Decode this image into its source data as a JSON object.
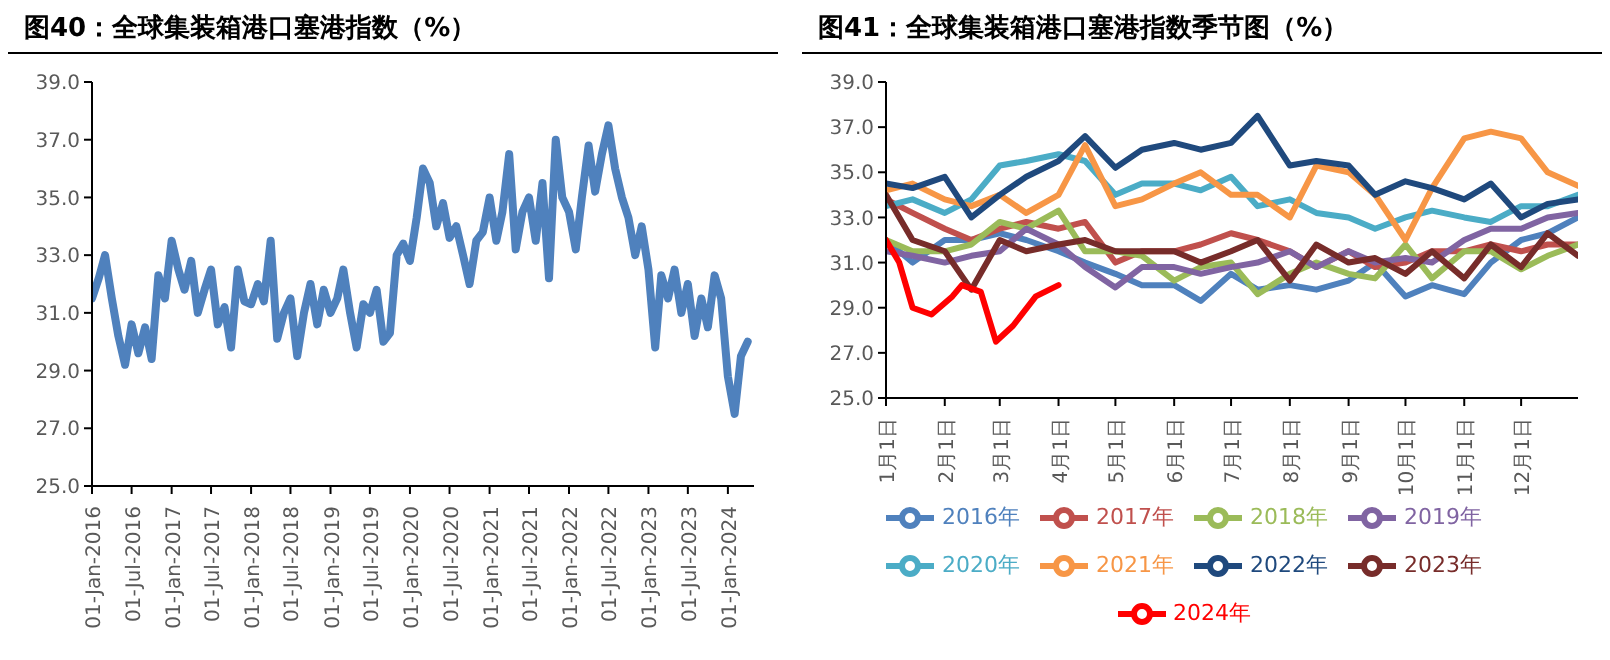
{
  "chart_data": [
    {
      "type": "line",
      "title": "图40：全球集装箱港口塞港指数（%）",
      "marker": "none",
      "line_style": "solid",
      "grid": false,
      "legend": false,
      "x": [
        "2016-01",
        "2016-02",
        "2016-03",
        "2016-04",
        "2016-05",
        "2016-06",
        "2016-07",
        "2016-08",
        "2016-09",
        "2016-10",
        "2016-11",
        "2016-12",
        "2017-01",
        "2017-02",
        "2017-03",
        "2017-04",
        "2017-05",
        "2017-06",
        "2017-07",
        "2017-08",
        "2017-09",
        "2017-10",
        "2017-11",
        "2017-12",
        "2018-01",
        "2018-02",
        "2018-03",
        "2018-04",
        "2018-05",
        "2018-06",
        "2018-07",
        "2018-08",
        "2018-09",
        "2018-10",
        "2018-11",
        "2018-12",
        "2019-01",
        "2019-02",
        "2019-03",
        "2019-04",
        "2019-05",
        "2019-06",
        "2019-07",
        "2019-08",
        "2019-09",
        "2019-10",
        "2019-11",
        "2019-12",
        "2020-01",
        "2020-02",
        "2020-03",
        "2020-04",
        "2020-05",
        "2020-06",
        "2020-07",
        "2020-08",
        "2020-09",
        "2020-10",
        "2020-11",
        "2020-12",
        "2021-01",
        "2021-02",
        "2021-03",
        "2021-04",
        "2021-05",
        "2021-06",
        "2021-07",
        "2021-08",
        "2021-09",
        "2021-10",
        "2021-11",
        "2021-12",
        "2022-01",
        "2022-02",
        "2022-03",
        "2022-04",
        "2022-05",
        "2022-06",
        "2022-07",
        "2022-08",
        "2022-09",
        "2022-10",
        "2022-11",
        "2022-12",
        "2023-01",
        "2023-02",
        "2023-03",
        "2023-04",
        "2023-05",
        "2023-06",
        "2023-07",
        "2023-08",
        "2023-09",
        "2023-10",
        "2023-11",
        "2023-12",
        "2024-01",
        "2024-02",
        "2024-03",
        "2024-04"
      ],
      "series": [
        {
          "color": "#4f81bd",
          "values": [
            31.5,
            32.2,
            33.0,
            31.5,
            30.2,
            29.2,
            30.6,
            29.6,
            30.5,
            29.4,
            32.3,
            31.5,
            33.5,
            32.5,
            31.8,
            32.8,
            31.0,
            31.8,
            32.5,
            30.6,
            31.2,
            29.8,
            32.5,
            31.4,
            31.3,
            32.0,
            31.4,
            33.5,
            30.1,
            31.0,
            31.5,
            29.5,
            31.0,
            32.0,
            30.6,
            31.8,
            31.0,
            31.5,
            32.5,
            31.0,
            29.8,
            31.3,
            31.0,
            31.8,
            30.0,
            30.3,
            33.0,
            33.4,
            32.8,
            34.3,
            36.0,
            35.5,
            34.0,
            34.8,
            33.6,
            34.0,
            33.0,
            32.0,
            33.5,
            33.8,
            35.0,
            33.5,
            34.5,
            36.5,
            33.2,
            34.5,
            35.0,
            33.5,
            35.5,
            32.2,
            37.0,
            35.0,
            34.5,
            33.2,
            35.0,
            36.8,
            35.2,
            36.5,
            37.5,
            36.0,
            35.0,
            34.3,
            33.0,
            34.0,
            32.5,
            29.8,
            32.3,
            31.5,
            32.5,
            31.0,
            32.0,
            30.2,
            31.5,
            30.5,
            32.3,
            31.5,
            28.8,
            27.5,
            29.5,
            30.0
          ]
        }
      ],
      "xlim": [
        "2016-01-01",
        "2024-04-30"
      ],
      "xticks": [
        {
          "value": "2016-01-01",
          "label": "01-Jan-2016"
        },
        {
          "value": "2016-07-01",
          "label": "01-Jul-2016"
        },
        {
          "value": "2017-01-01",
          "label": "01-Jan-2017"
        },
        {
          "value": "2017-07-01",
          "label": "01-Jul-2017"
        },
        {
          "value": "2018-01-01",
          "label": "01-Jan-2018"
        },
        {
          "value": "2018-07-01",
          "label": "01-Jul-2018"
        },
        {
          "value": "2019-01-01",
          "label": "01-Jan-2019"
        },
        {
          "value": "2019-07-01",
          "label": "01-Jul-2019"
        },
        {
          "value": "2020-01-01",
          "label": "01-Jan-2020"
        },
        {
          "value": "2020-07-01",
          "label": "01-Jul-2020"
        },
        {
          "value": "2021-01-01",
          "label": "01-Jan-2021"
        },
        {
          "value": "2021-07-01",
          "label": "01-Jul-2021"
        },
        {
          "value": "2022-01-01",
          "label": "01-Jan-2022"
        },
        {
          "value": "2022-07-01",
          "label": "01-Jul-2022"
        },
        {
          "value": "2023-01-01",
          "label": "01-Jan-2023"
        },
        {
          "value": "2023-07-01",
          "label": "01-Jul-2023"
        },
        {
          "value": "2024-01-01",
          "label": "01-Jan-2024"
        }
      ],
      "ylim": [
        25,
        39
      ],
      "yticks": [
        {
          "value": 25,
          "label": "25.0"
        },
        {
          "value": 27,
          "label": "27.0"
        },
        {
          "value": 29,
          "label": "29.0"
        },
        {
          "value": 31,
          "label": "31.0"
        },
        {
          "value": 33,
          "label": "33.0"
        },
        {
          "value": 35,
          "label": "35.0"
        },
        {
          "value": 37,
          "label": "37.0"
        },
        {
          "value": 39,
          "label": "39.0"
        }
      ]
    },
    {
      "type": "line",
      "title": "图41：全球集装箱港口塞港指数季节图（%）",
      "marker": "none",
      "line_style": "solid",
      "grid": false,
      "legend": "bottom",
      "x": [
        "--01-01",
        "--01-15",
        "--02-01",
        "--02-15",
        "--03-01",
        "--03-15",
        "--04-01",
        "--04-15",
        "--05-01",
        "--05-15",
        "--06-01",
        "--06-15",
        "--07-01",
        "--07-15",
        "--08-01",
        "--08-15",
        "--09-01",
        "--09-15",
        "--10-01",
        "--10-15",
        "--11-01",
        "--11-15",
        "--12-01",
        "--12-15",
        "--12-31"
      ],
      "series": [
        {
          "name": "2016年",
          "color": "#4f81bd",
          "values": [
            32.0,
            31.0,
            32.0,
            32.0,
            32.3,
            32.0,
            31.5,
            31.0,
            30.5,
            30.0,
            30.0,
            29.3,
            30.5,
            29.8,
            30.0,
            29.8,
            30.2,
            31.0,
            29.5,
            30.0,
            29.6,
            31.0,
            32.0,
            32.3,
            33.0
          ]
        },
        {
          "name": "2017年",
          "color": "#c0504d",
          "values": [
            33.8,
            33.2,
            32.5,
            32.0,
            32.5,
            32.8,
            32.5,
            32.8,
            31.0,
            31.5,
            31.5,
            31.8,
            32.3,
            32.0,
            31.5,
            30.8,
            31.5,
            30.8,
            31.0,
            31.5,
            31.5,
            31.8,
            31.5,
            31.8,
            31.8
          ]
        },
        {
          "name": "2018年",
          "color": "#9bbb59",
          "values": [
            32.0,
            31.5,
            31.5,
            31.8,
            32.8,
            32.5,
            33.3,
            31.5,
            31.5,
            31.3,
            30.2,
            30.8,
            31.0,
            29.6,
            30.5,
            31.0,
            30.5,
            30.3,
            31.8,
            30.3,
            31.5,
            31.5,
            30.7,
            31.3,
            31.8
          ]
        },
        {
          "name": "2019年",
          "color": "#8064a2",
          "values": [
            31.5,
            31.3,
            31.0,
            31.3,
            31.5,
            32.5,
            31.8,
            30.8,
            29.9,
            30.8,
            30.8,
            30.5,
            30.8,
            31.0,
            31.5,
            30.8,
            31.5,
            31.0,
            31.2,
            31.0,
            32.0,
            32.5,
            32.5,
            33.0,
            33.2
          ]
        },
        {
          "name": "2020年",
          "color": "#4bacc6",
          "values": [
            33.5,
            33.8,
            33.2,
            33.8,
            35.3,
            35.5,
            35.8,
            35.5,
            34.0,
            34.5,
            34.5,
            34.2,
            34.8,
            33.5,
            33.8,
            33.2,
            33.0,
            32.5,
            33.0,
            33.3,
            33.0,
            32.8,
            33.5,
            33.5,
            34.0
          ]
        },
        {
          "name": "2021年",
          "color": "#f79646",
          "values": [
            34.2,
            34.5,
            33.8,
            33.5,
            34.0,
            33.2,
            34.0,
            36.2,
            33.5,
            33.8,
            34.5,
            35.0,
            34.0,
            34.0,
            33.0,
            35.3,
            35.0,
            34.0,
            32.0,
            34.3,
            36.5,
            36.8,
            36.5,
            35.0,
            34.4
          ]
        },
        {
          "name": "2022年",
          "color": "#1f497d",
          "values": [
            34.5,
            34.3,
            34.8,
            33.0,
            34.0,
            34.8,
            35.5,
            36.6,
            35.2,
            36.0,
            36.3,
            36.0,
            36.3,
            37.5,
            35.3,
            35.5,
            35.3,
            34.0,
            34.6,
            34.3,
            33.8,
            34.5,
            33.0,
            33.6,
            33.8
          ]
        },
        {
          "name": "2023年",
          "color": "#772c2a",
          "values": [
            34.0,
            32.0,
            31.5,
            29.8,
            32.0,
            31.5,
            31.8,
            32.0,
            31.5,
            31.5,
            31.5,
            31.0,
            31.5,
            32.0,
            30.2,
            31.8,
            31.0,
            31.2,
            30.5,
            31.5,
            30.3,
            31.8,
            30.8,
            32.3,
            31.3
          ]
        },
        {
          "name": "2024年",
          "color": "#ff0000",
          "x": [
            "--01-01",
            "--01-08",
            "--01-15",
            "--01-25",
            "--02-05",
            "--02-10",
            "--02-20",
            "--02-28",
            "--03-08",
            "--03-20",
            "--04-01"
          ],
          "values": [
            32.0,
            31.0,
            29.0,
            28.7,
            29.5,
            30.0,
            29.7,
            27.5,
            28.2,
            29.5,
            30.0
          ]
        }
      ],
      "xlim": [
        "--01-01",
        "--12-31"
      ],
      "xticks": [
        {
          "value": "--01-01",
          "label": "1月1日"
        },
        {
          "value": "--02-01",
          "label": "2月1日"
        },
        {
          "value": "--03-01",
          "label": "3月1日"
        },
        {
          "value": "--04-01",
          "label": "4月1日"
        },
        {
          "value": "--05-01",
          "label": "5月1日"
        },
        {
          "value": "--06-01",
          "label": "6月1日"
        },
        {
          "value": "--07-01",
          "label": "7月1日"
        },
        {
          "value": "--08-01",
          "label": "8月1日"
        },
        {
          "value": "--09-01",
          "label": "9月1日"
        },
        {
          "value": "--10-01",
          "label": "10月1日"
        },
        {
          "value": "--11-01",
          "label": "11月1日"
        },
        {
          "value": "--12-01",
          "label": "12月1日"
        }
      ],
      "ylim": [
        25,
        39
      ],
      "yticks": [
        {
          "value": 25,
          "label": "25.0"
        },
        {
          "value": 27,
          "label": "27.0"
        },
        {
          "value": 29,
          "label": "29.0"
        },
        {
          "value": 31,
          "label": "31.0"
        },
        {
          "value": 33,
          "label": "33.0"
        },
        {
          "value": 35,
          "label": "35.0"
        },
        {
          "value": 37,
          "label": "37.0"
        },
        {
          "value": 39,
          "label": "39.0"
        }
      ]
    }
  ]
}
